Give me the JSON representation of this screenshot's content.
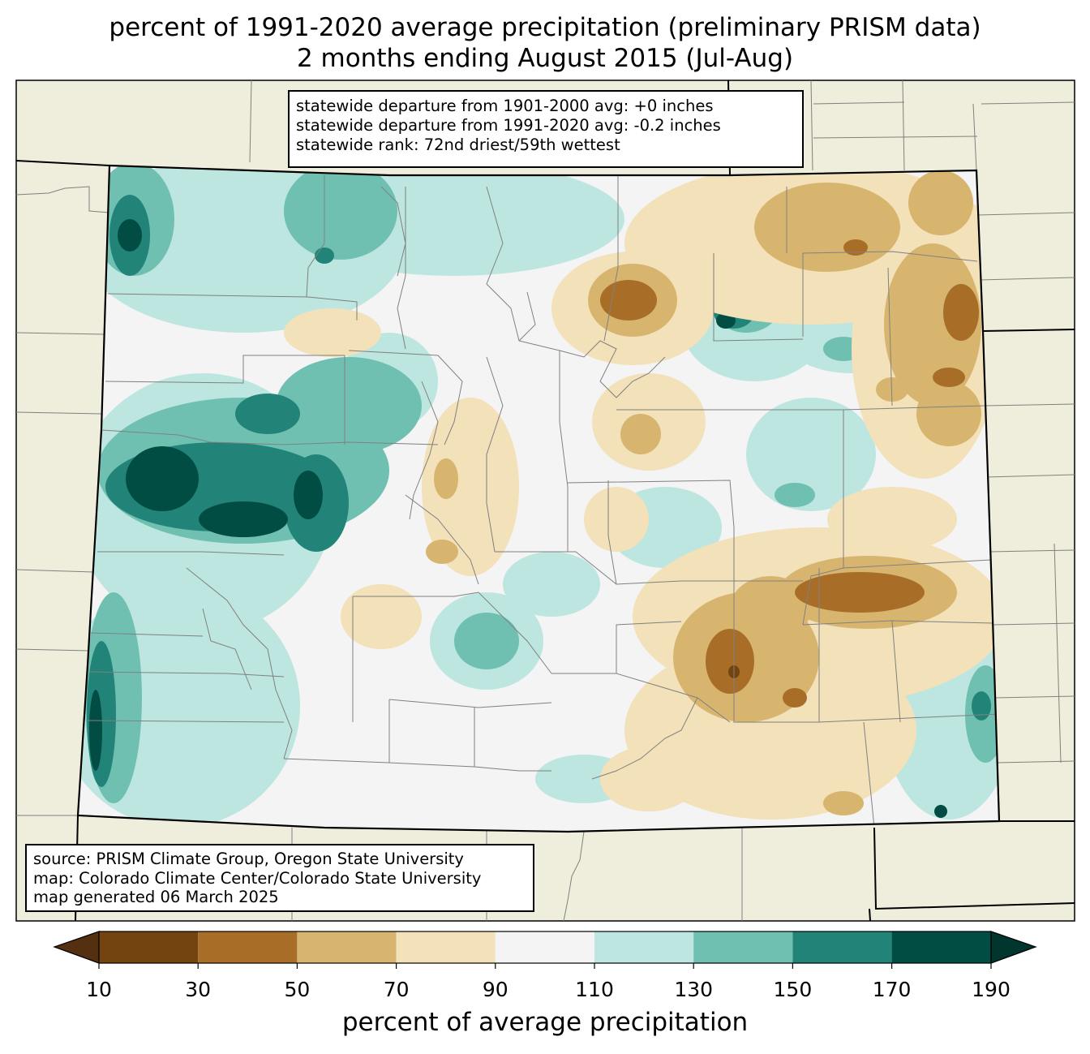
{
  "title": {
    "line1": "percent of 1991-2020 average precipitation (preliminary PRISM data)",
    "line2": "2 months ending August 2015 (Jul-Aug)"
  },
  "stats_box": {
    "line1": "statewide departure from 1901-2000 avg: +0 inches",
    "line2": "statewide departure from 1991-2020 avg: -0.2 inches",
    "line3": "statewide rank: 72nd driest/59th wettest"
  },
  "source_box": {
    "line1": "source: PRISM Climate Group, Oregon State University",
    "line2": "map: Colorado Climate Center/Colorado State University",
    "line3": "map generated 06 March 2025"
  },
  "colorbar": {
    "label": "percent of average precipitation",
    "ticks": [
      "10",
      "30",
      "50",
      "70",
      "90",
      "110",
      "130",
      "150",
      "170",
      "190"
    ],
    "colors": [
      "#744410",
      "#a86e28",
      "#d8b56f",
      "#f2e1b9",
      "#f3f4f3",
      "#bde6e0",
      "#6fc0b1",
      "#228479",
      "#024d43"
    ],
    "under_color": "#553010",
    "over_color": "#01362e"
  },
  "map_colors": {
    "background": "#efeddb",
    "state_border": "#000000",
    "county_lines": "#808080"
  }
}
